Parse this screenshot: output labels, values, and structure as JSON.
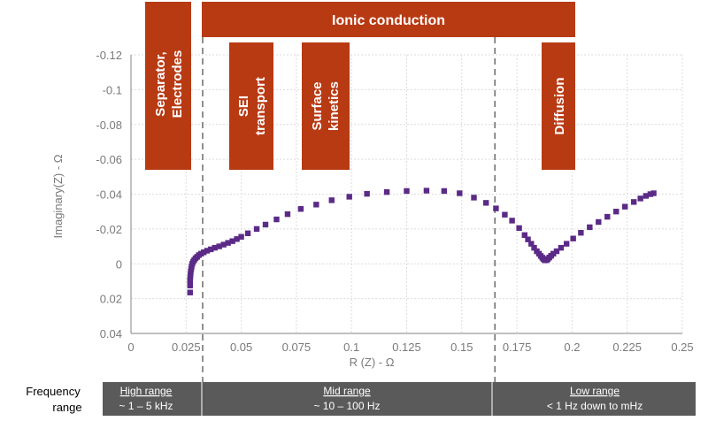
{
  "chart_data": {
    "type": "scatter",
    "xlabel": "R (Z) - Ω",
    "ylabel": "Imaginary(Z) - Ω",
    "xlim": [
      0,
      0.25
    ],
    "ylim": [
      0.04,
      -0.12
    ],
    "x_ticks": [
      "0",
      "0.025",
      "0.05",
      "0.075",
      "0.1",
      "0.125",
      "0.15",
      "0.175",
      "0.2",
      "0.225",
      "0.25"
    ],
    "y_ticks": [
      "-0.12",
      "-0.1",
      "-0.08",
      "-0.06",
      "-0.04",
      "-0.02",
      "0",
      "0.02",
      "0.04"
    ],
    "grid": true,
    "marker_color": "#5b2a86",
    "series": [
      {
        "points": [
          [
            0.0268,
            0.0165
          ],
          [
            0.0268,
            0.0125
          ],
          [
            0.0268,
            0.0105
          ],
          [
            0.0268,
            0.009
          ],
          [
            0.0269,
            0.0075
          ],
          [
            0.027,
            0.006
          ],
          [
            0.0271,
            0.0045
          ],
          [
            0.0273,
            0.003
          ],
          [
            0.0275,
            0.0015
          ],
          [
            0.0278,
            0.0
          ],
          [
            0.0282,
            -0.0012
          ],
          [
            0.0287,
            -0.0022
          ],
          [
            0.0293,
            -0.0032
          ],
          [
            0.03,
            -0.004
          ],
          [
            0.0308,
            -0.005
          ],
          [
            0.0318,
            -0.0058
          ],
          [
            0.033,
            -0.0066
          ],
          [
            0.0345,
            -0.0075
          ],
          [
            0.0362,
            -0.0083
          ],
          [
            0.038,
            -0.0092
          ],
          [
            0.04,
            -0.01
          ],
          [
            0.042,
            -0.011
          ],
          [
            0.044,
            -0.012
          ],
          [
            0.046,
            -0.013
          ],
          [
            0.048,
            -0.0142
          ],
          [
            0.05,
            -0.0155
          ],
          [
            0.053,
            -0.0175
          ],
          [
            0.057,
            -0.02
          ],
          [
            0.061,
            -0.0225
          ],
          [
            0.066,
            -0.0255
          ],
          [
            0.071,
            -0.0285
          ],
          [
            0.077,
            -0.0315
          ],
          [
            0.084,
            -0.034
          ],
          [
            0.091,
            -0.0365
          ],
          [
            0.099,
            -0.0385
          ],
          [
            0.107,
            -0.0402
          ],
          [
            0.116,
            -0.0412
          ],
          [
            0.125,
            -0.0418
          ],
          [
            0.134,
            -0.042
          ],
          [
            0.142,
            -0.0418
          ],
          [
            0.149,
            -0.0405
          ],
          [
            0.1555,
            -0.038
          ],
          [
            0.161,
            -0.035
          ],
          [
            0.1655,
            -0.0318
          ],
          [
            0.1695,
            -0.0282
          ],
          [
            0.1728,
            -0.0248
          ],
          [
            0.176,
            -0.0205
          ],
          [
            0.1785,
            -0.0165
          ],
          [
            0.18,
            -0.014
          ],
          [
            0.1815,
            -0.0115
          ],
          [
            0.1828,
            -0.0092
          ],
          [
            0.184,
            -0.0072
          ],
          [
            0.185,
            -0.0058
          ],
          [
            0.1858,
            -0.0045
          ],
          [
            0.1865,
            -0.0035
          ],
          [
            0.187,
            -0.0028
          ],
          [
            0.1875,
            -0.0022
          ],
          [
            0.188,
            -0.002
          ],
          [
            0.1885,
            -0.0022
          ],
          [
            0.189,
            -0.0028
          ],
          [
            0.1897,
            -0.0036
          ],
          [
            0.1905,
            -0.0046
          ],
          [
            0.1915,
            -0.0058
          ],
          [
            0.193,
            -0.0072
          ],
          [
            0.195,
            -0.0092
          ],
          [
            0.1975,
            -0.0115
          ],
          [
            0.2005,
            -0.0145
          ],
          [
            0.204,
            -0.0178
          ],
          [
            0.208,
            -0.021
          ],
          [
            0.212,
            -0.024
          ],
          [
            0.216,
            -0.027
          ],
          [
            0.22,
            -0.03
          ],
          [
            0.224,
            -0.0328
          ],
          [
            0.228,
            -0.0355
          ],
          [
            0.231,
            -0.0375
          ],
          [
            0.2335,
            -0.039
          ],
          [
            0.2355,
            -0.04
          ],
          [
            0.237,
            -0.0405
          ]
        ]
      }
    ],
    "dividers_x": [
      0.0325,
      0.165
    ],
    "annotations": {
      "top_banner": {
        "label": "Ionic conduction"
      },
      "regions": [
        {
          "name": "separator",
          "lines": [
            "Separator,",
            "Electrodes"
          ]
        },
        {
          "name": "sei",
          "lines": [
            "SEI",
            "transport"
          ]
        },
        {
          "name": "surface",
          "lines": [
            "Surface",
            "kinetics"
          ]
        },
        {
          "name": "diffusion",
          "lines": [
            "Diffusion"
          ]
        }
      ],
      "region_color": "#b83a13"
    },
    "frequency_bar": {
      "label_lines": [
        "Frequency",
        "range"
      ],
      "bands": [
        {
          "title": "High range",
          "subtitle": "~ 1 – 5 kHz"
        },
        {
          "title": "Mid range",
          "subtitle": "~ 10 – 100 Hz"
        },
        {
          "title": "Low range",
          "subtitle": "< 1 Hz down to mHz"
        }
      ],
      "band_color": "#5a5a5a"
    }
  }
}
